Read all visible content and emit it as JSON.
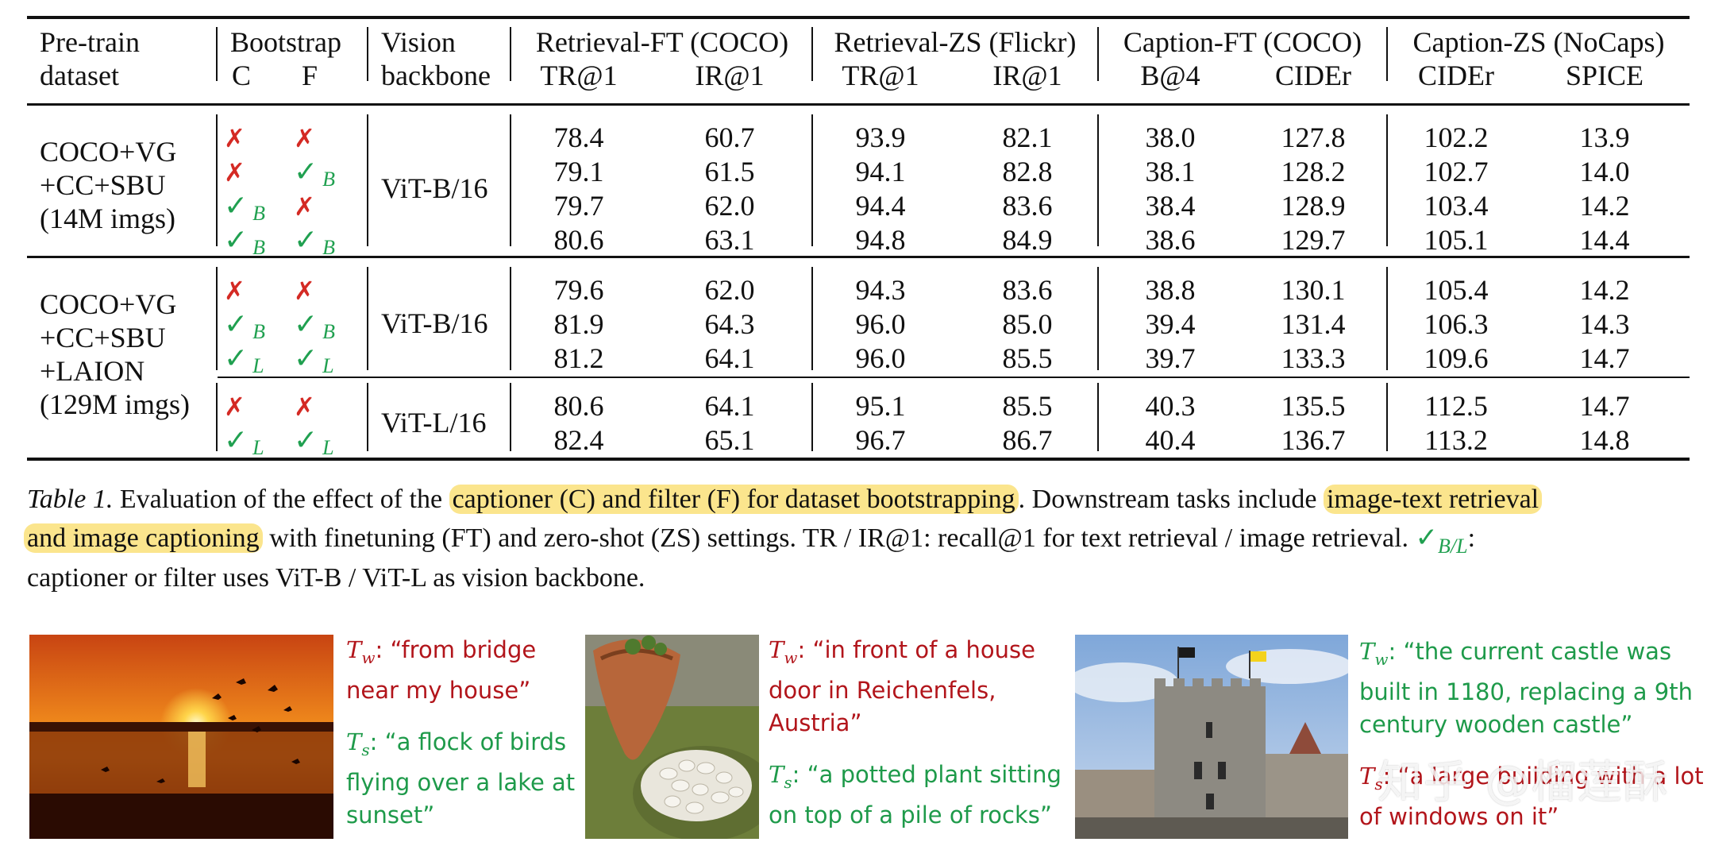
{
  "table": {
    "headers": {
      "pretrain_line1": "Pre-train",
      "pretrain_line2": "dataset",
      "bootstrap": "Bootstrap",
      "c": "C",
      "f": "F",
      "vision_line1": "Vision",
      "vision_line2": "backbone",
      "groups": [
        {
          "title": "Retrieval-FT (COCO)",
          "sub": [
            "TR@1",
            "IR@1"
          ]
        },
        {
          "title": "Retrieval-ZS (Flickr)",
          "sub": [
            "TR@1",
            "IR@1"
          ]
        },
        {
          "title": "Caption-FT (COCO)",
          "sub": [
            "B@4",
            "CIDEr"
          ]
        },
        {
          "title": "Caption-ZS (NoCaps)",
          "sub": [
            "CIDEr",
            "SPICE"
          ]
        }
      ]
    },
    "blocks": [
      {
        "dataset": [
          "COCO+VG",
          "+CC+SBU",
          "(14M imgs)"
        ],
        "backbone": "ViT-B/16",
        "rows": [
          {
            "c": "x",
            "c_sub": "",
            "f": "x",
            "f_sub": "",
            "vals": [
              "78.4",
              "60.7",
              "93.9",
              "82.1",
              "38.0",
              "127.8",
              "102.2",
              "13.9"
            ]
          },
          {
            "c": "x",
            "c_sub": "",
            "f": "check",
            "f_sub": "B",
            "vals": [
              "79.1",
              "61.5",
              "94.1",
              "82.8",
              "38.1",
              "128.2",
              "102.7",
              "14.0"
            ]
          },
          {
            "c": "check",
            "c_sub": "B",
            "f": "x",
            "f_sub": "",
            "vals": [
              "79.7",
              "62.0",
              "94.4",
              "83.6",
              "38.4",
              "128.9",
              "103.4",
              "14.2"
            ]
          },
          {
            "c": "check",
            "c_sub": "B",
            "f": "check",
            "f_sub": "B",
            "vals": [
              "80.6",
              "63.1",
              "94.8",
              "84.9",
              "38.6",
              "129.7",
              "105.1",
              "14.4"
            ]
          }
        ]
      },
      {
        "dataset": [
          "COCO+VG",
          "+CC+SBU",
          "+LAION",
          "(129M imgs)"
        ],
        "backbone": "ViT-B/16",
        "rows": [
          {
            "c": "x",
            "c_sub": "",
            "f": "x",
            "f_sub": "",
            "vals": [
              "79.6",
              "62.0",
              "94.3",
              "83.6",
              "38.8",
              "130.1",
              "105.4",
              "14.2"
            ]
          },
          {
            "c": "check",
            "c_sub": "B",
            "f": "check",
            "f_sub": "B",
            "vals": [
              "81.9",
              "64.3",
              "96.0",
              "85.0",
              "39.4",
              "131.4",
              "106.3",
              "14.3"
            ]
          },
          {
            "c": "check",
            "c_sub": "L",
            "f": "check",
            "f_sub": "L",
            "vals": [
              "81.2",
              "64.1",
              "96.0",
              "85.5",
              "39.7",
              "133.3",
              "109.6",
              "14.7"
            ]
          }
        ]
      },
      {
        "dataset": [],
        "backbone": "ViT-L/16",
        "rows": [
          {
            "c": "x",
            "c_sub": "",
            "f": "x",
            "f_sub": "",
            "vals": [
              "80.6",
              "64.1",
              "95.1",
              "85.5",
              "40.3",
              "135.5",
              "112.5",
              "14.7"
            ]
          },
          {
            "c": "check",
            "c_sub": "L",
            "f": "check",
            "f_sub": "L",
            "vals": [
              "82.4",
              "65.1",
              "96.7",
              "86.7",
              "40.4",
              "136.7",
              "113.2",
              "14.8"
            ]
          }
        ]
      }
    ],
    "symbols": {
      "x": "✗",
      "check": "✓"
    }
  },
  "caption": {
    "label": "Table 1.",
    "text1": " Evaluation of the effect of the ",
    "hl1": "captioner (C) and filter (F) for dataset bootstrapping",
    "text2": ". Downstream tasks include ",
    "hl2a": "image-text retrieval",
    "hl2b": "and image captioning",
    "text3": " with finetuning (FT) and zero-shot (ZS) settings. TR / IR@1: recall@1 for text retrieval / image retrieval. ",
    "check_sub": "B/L",
    "text4": ":",
    "text5": "captioner or filter uses ViT-B / ViT-L as vision backbone."
  },
  "examples": [
    {
      "tw": "“from bridge near my house”",
      "ts": "“a flock of birds flying over a lake at sunset”",
      "tw_color": "#b2151b",
      "ts_color": "#1e9a4a"
    },
    {
      "tw": "“in front of a house door in Reichenfels, Austria”",
      "ts": "“a potted plant sitting on top of a pile of rocks”",
      "tw_color": "#b2151b",
      "ts_color": "#1e9a4a"
    },
    {
      "tw": "“the current castle was built in 1180, replacing a 9th century wooden castle”",
      "ts": "“a large building with a lot of windows on it”",
      "tw_color": "#1e9a4a",
      "ts_color": "#b2151b"
    }
  ],
  "labels": {
    "tw_main": "T",
    "tw_sub": "w",
    "ts_main": "T",
    "ts_sub": "s",
    "colon": ": "
  },
  "watermark": "知乎 @榴莲酥"
}
